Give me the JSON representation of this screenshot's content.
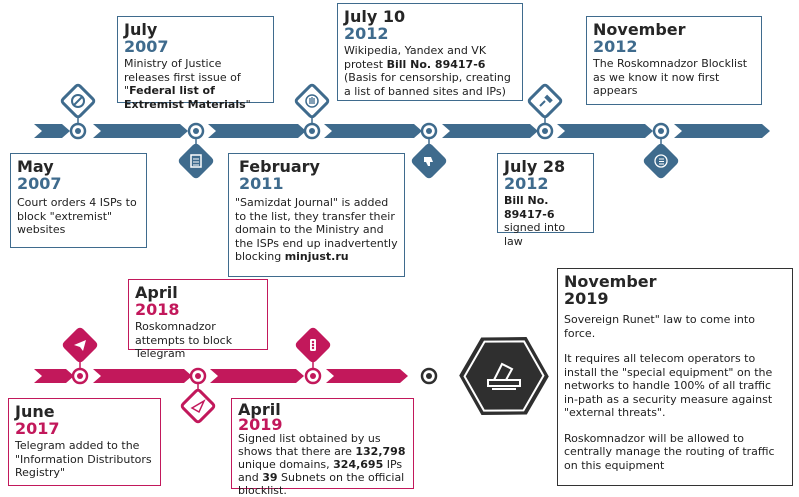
{
  "colors": {
    "blue": "#3f6b8d",
    "pink": "#c2185b",
    "dark": "#2f2f2f"
  },
  "events": {
    "may2007": {
      "month": "May",
      "year": "2007",
      "desc": "Court orders 4 ISPs to block \"extremist\" websites"
    },
    "jul2007": {
      "month": "July",
      "year": "2007",
      "desc_pre": "Ministry of Justice releases first issue of \"",
      "desc_bold": "Federal list of Extremist Materials",
      "desc_post": "\""
    },
    "feb2011": {
      "month": "February",
      "year": "2011",
      "desc_pre": "\"Samizdat Journal\" is added to the list, they transfer their domain to the Ministry and the ISPs end up inadvertently blocking ",
      "desc_bold": "minjust.ru"
    },
    "jul2012": {
      "month": "July 10",
      "year": "2012",
      "desc_pre": "Wikipedia, Yandex and VK protest ",
      "desc_bold": "Bill No. 89417-6",
      "desc_post": " (Basis for censorship, creating a list of banned sites and IPs)"
    },
    "jul28_2012": {
      "month": "July 28",
      "year": "2012",
      "desc_bold": "Bill No. 89417-6",
      "desc_post": " signed into law"
    },
    "nov2012": {
      "month": "November",
      "year": "2012",
      "desc": "The Roskomnadzor Blocklist as we know it now first appears"
    },
    "jun2017": {
      "month": "June",
      "year": "2017",
      "desc": "Telegram added to the \"Information Distributors Registry\""
    },
    "apr2018": {
      "month": "April",
      "year": "2018",
      "desc": "Roskomnadzor attempts to block Telegram"
    },
    "apr2019": {
      "month": "April",
      "year": "2019",
      "desc_a": "Signed list obtained by us shows that there are ",
      "b1": "132,798",
      "desc_b": " unique domains, ",
      "b2": "324,695",
      "desc_c": " IPs and ",
      "b3": "39",
      "desc_d": " Subnets on the official blocklist."
    },
    "nov2019": {
      "month": "November",
      "year": "2019",
      "p1": "Sovereign Runet\" law to come into force.",
      "p2": "It requires all telecom operators to install the \"special equipment\" on the networks to handle 100% of all traffic in-path as a security measure against \"external threats\".",
      "p3": "Roskomnadzor will be allowed to centrally manage the routing of traffic on this equipment"
    }
  },
  "icons": [
    "prohibited-icon",
    "list-icon",
    "hand-stop-icon",
    "thumbs-down-icon",
    "gavel-icon",
    "bullet-list-icon",
    "telegram-icon",
    "paper-plane-icon",
    "traffic-light-icon",
    "ballot-box-icon"
  ]
}
